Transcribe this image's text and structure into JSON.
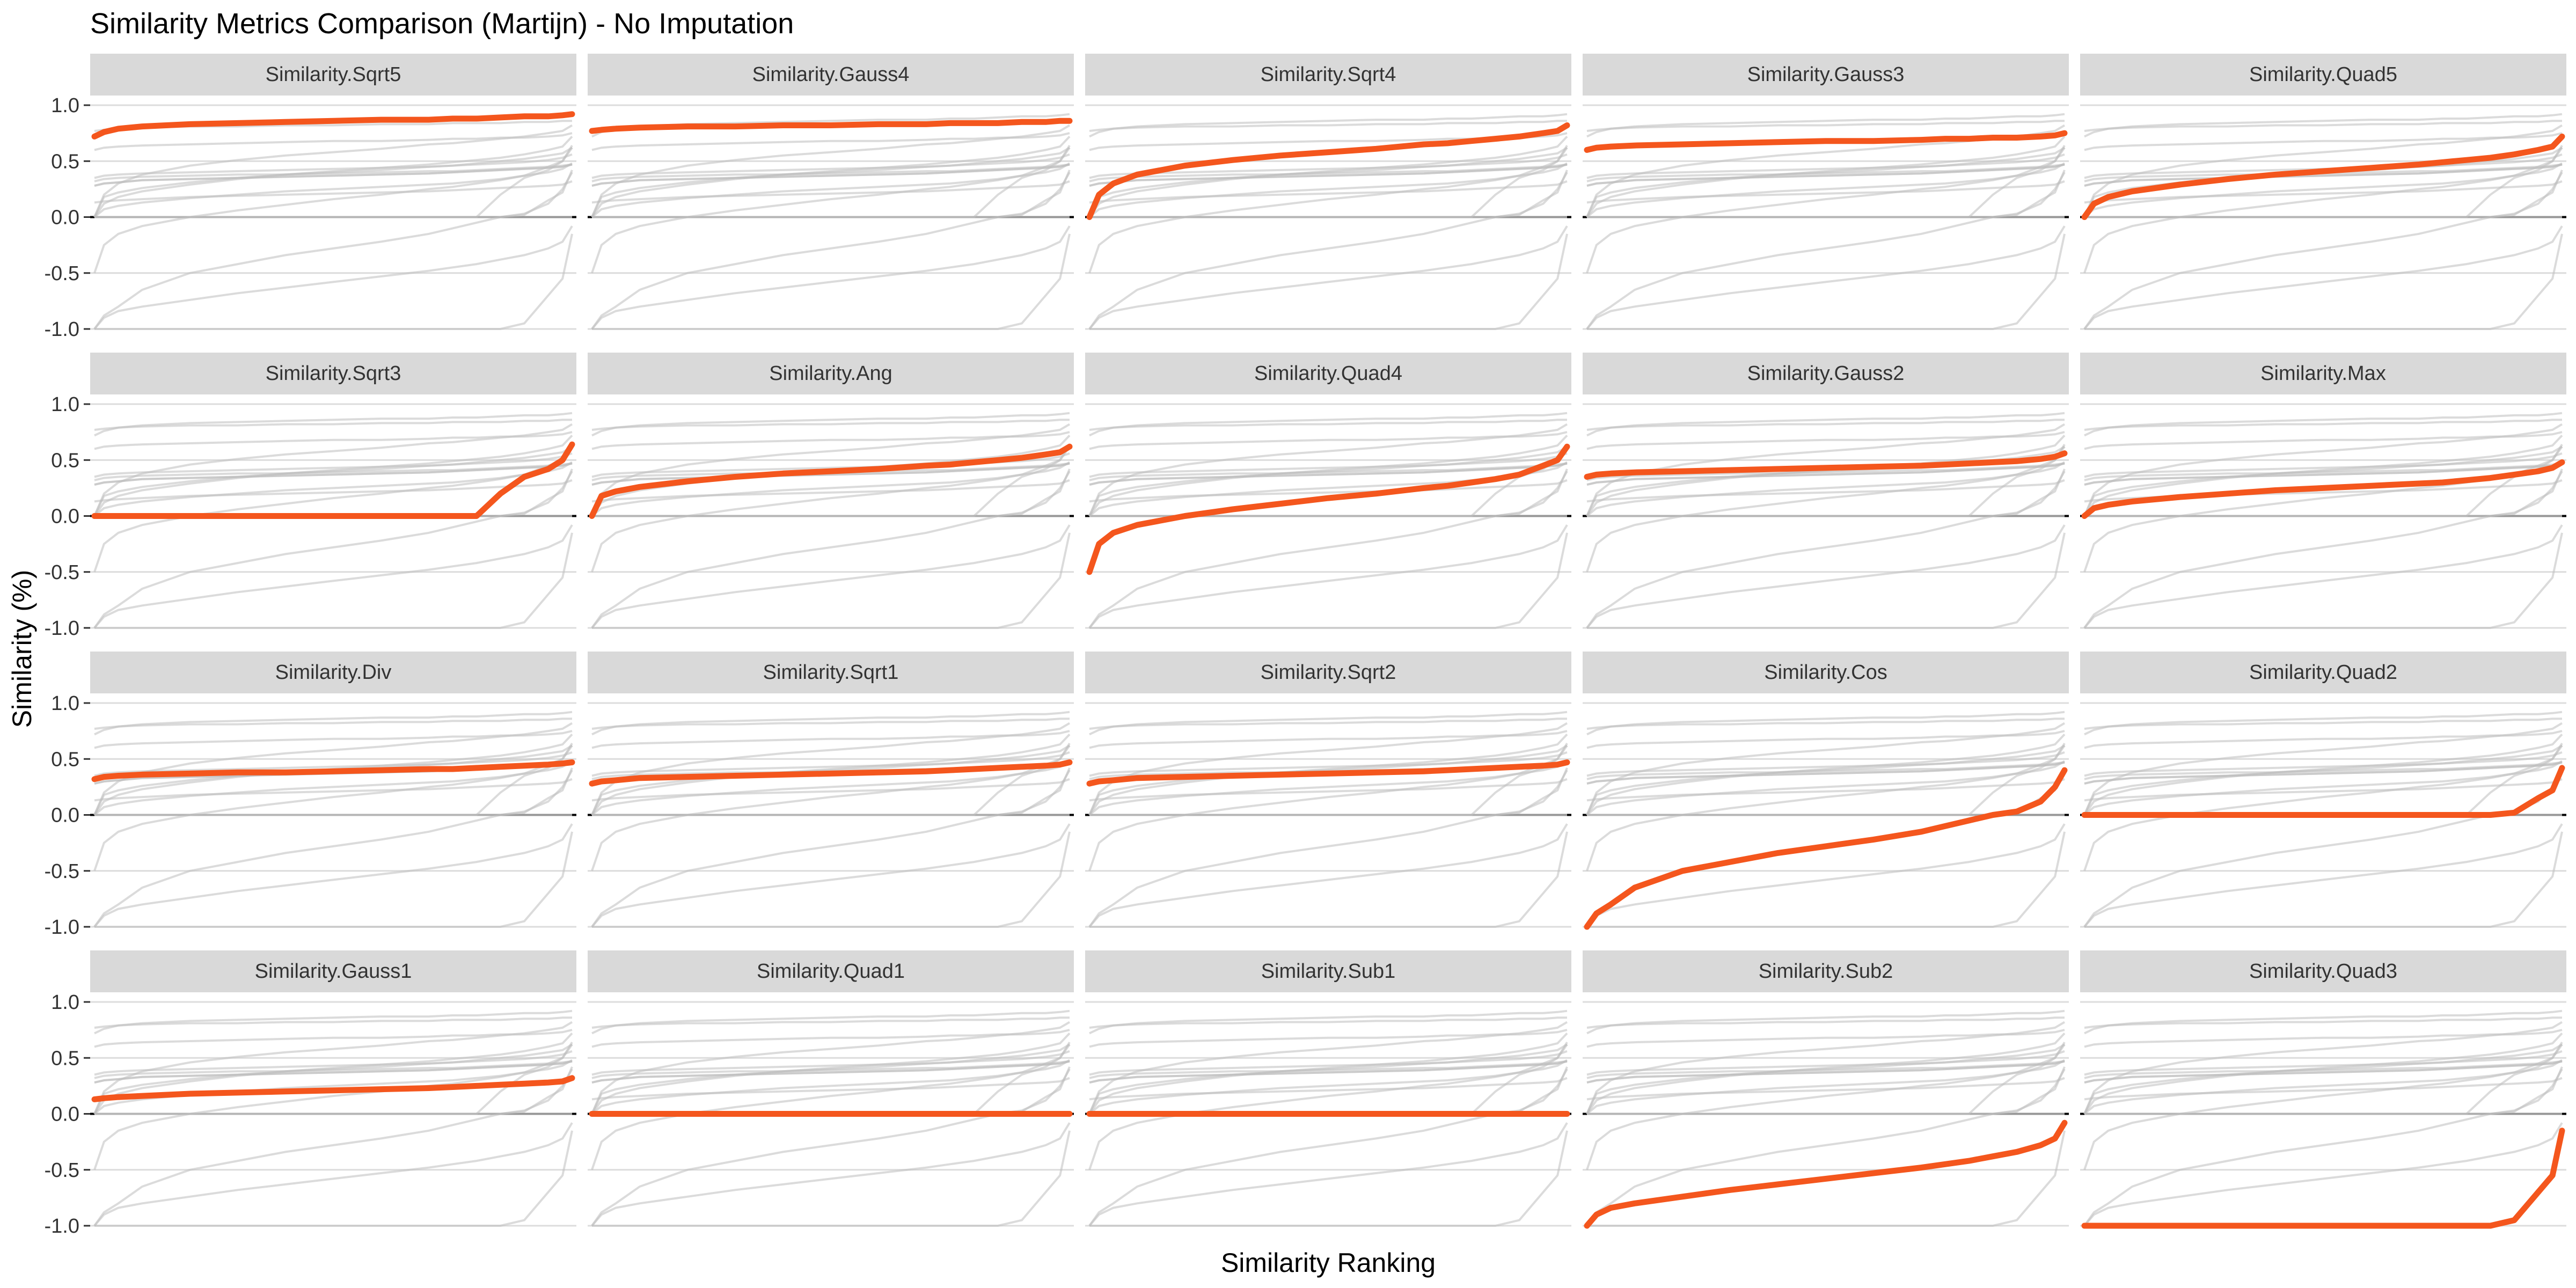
{
  "chart_data": {
    "type": "line",
    "title": "Similarity Metrics Comparison (Martijn) - No Imputation",
    "xlabel": "Similarity Ranking",
    "ylabel": "Similarity (%)",
    "ylim": [
      -1.0,
      1.0
    ],
    "yticks": [
      {
        "value": 1.0,
        "label": "1.0"
      },
      {
        "value": 0.5,
        "label": "0.5"
      },
      {
        "value": 0.0,
        "label": "0.0"
      },
      {
        "value": -0.5,
        "label": "-0.5"
      },
      {
        "value": -1.0,
        "label": "-1.0"
      }
    ],
    "x": [
      0,
      0.02,
      0.05,
      0.1,
      0.2,
      0.3,
      0.4,
      0.5,
      0.6,
      0.7,
      0.75,
      0.8,
      0.85,
      0.9,
      0.95,
      0.98,
      1.0
    ],
    "highlight_color": "#f4561d",
    "background_color": "#bdbdbd",
    "grid": true,
    "layout": {
      "rows": 4,
      "cols": 5
    },
    "panels": [
      {
        "name": "Similarity.Sqrt5",
        "values": [
          0.72,
          0.76,
          0.79,
          0.81,
          0.83,
          0.84,
          0.85,
          0.86,
          0.87,
          0.87,
          0.88,
          0.88,
          0.89,
          0.9,
          0.9,
          0.91,
          0.92
        ]
      },
      {
        "name": "Similarity.Gauss4",
        "values": [
          0.77,
          0.78,
          0.79,
          0.8,
          0.81,
          0.81,
          0.82,
          0.82,
          0.83,
          0.83,
          0.84,
          0.84,
          0.84,
          0.85,
          0.85,
          0.86,
          0.86
        ]
      },
      {
        "name": "Similarity.Sqrt4",
        "values": [
          0.0,
          0.2,
          0.3,
          0.38,
          0.46,
          0.51,
          0.55,
          0.58,
          0.61,
          0.65,
          0.66,
          0.68,
          0.7,
          0.72,
          0.75,
          0.77,
          0.82
        ]
      },
      {
        "name": "Similarity.Gauss3",
        "values": [
          0.6,
          0.62,
          0.63,
          0.64,
          0.65,
          0.66,
          0.67,
          0.68,
          0.68,
          0.69,
          0.7,
          0.7,
          0.71,
          0.71,
          0.72,
          0.73,
          0.75
        ]
      },
      {
        "name": "Similarity.Quad5",
        "values": [
          0.0,
          0.12,
          0.18,
          0.23,
          0.29,
          0.34,
          0.38,
          0.41,
          0.44,
          0.47,
          0.49,
          0.51,
          0.53,
          0.56,
          0.6,
          0.63,
          0.72
        ]
      },
      {
        "name": "Similarity.Sqrt3",
        "values": [
          0.0,
          0.0,
          0.0,
          0.0,
          0.0,
          0.0,
          0.0,
          0.0,
          0.0,
          0.0,
          0.0,
          0.0,
          0.2,
          0.35,
          0.42,
          0.5,
          0.64
        ]
      },
      {
        "name": "Similarity.Ang",
        "values": [
          0.0,
          0.18,
          0.22,
          0.26,
          0.31,
          0.35,
          0.38,
          0.4,
          0.42,
          0.45,
          0.46,
          0.48,
          0.5,
          0.52,
          0.55,
          0.57,
          0.62
        ]
      },
      {
        "name": "Similarity.Quad4",
        "values": [
          -0.5,
          -0.25,
          -0.15,
          -0.08,
          0.0,
          0.06,
          0.11,
          0.16,
          0.2,
          0.25,
          0.27,
          0.3,
          0.33,
          0.37,
          0.45,
          0.5,
          0.62
        ]
      },
      {
        "name": "Similarity.Gauss2",
        "values": [
          0.35,
          0.37,
          0.38,
          0.39,
          0.4,
          0.41,
          0.42,
          0.43,
          0.44,
          0.45,
          0.46,
          0.47,
          0.48,
          0.49,
          0.51,
          0.53,
          0.56
        ]
      },
      {
        "name": "Similarity.Max",
        "values": [
          0.0,
          0.07,
          0.1,
          0.13,
          0.17,
          0.2,
          0.23,
          0.25,
          0.27,
          0.29,
          0.3,
          0.32,
          0.34,
          0.37,
          0.4,
          0.43,
          0.48
        ]
      },
      {
        "name": "Similarity.Div",
        "values": [
          0.32,
          0.34,
          0.35,
          0.36,
          0.37,
          0.38,
          0.38,
          0.39,
          0.4,
          0.41,
          0.41,
          0.42,
          0.43,
          0.44,
          0.45,
          0.46,
          0.47
        ]
      },
      {
        "name": "Similarity.Sqrt1",
        "values": [
          0.28,
          0.3,
          0.31,
          0.33,
          0.34,
          0.35,
          0.36,
          0.37,
          0.38,
          0.39,
          0.4,
          0.41,
          0.42,
          0.43,
          0.44,
          0.45,
          0.47
        ]
      },
      {
        "name": "Similarity.Sqrt2",
        "values": [
          0.28,
          0.3,
          0.31,
          0.33,
          0.34,
          0.35,
          0.36,
          0.37,
          0.38,
          0.39,
          0.4,
          0.41,
          0.42,
          0.43,
          0.44,
          0.45,
          0.47
        ]
      },
      {
        "name": "Similarity.Cos",
        "values": [
          -1.0,
          -0.88,
          -0.8,
          -0.65,
          -0.5,
          -0.42,
          -0.34,
          -0.28,
          -0.22,
          -0.15,
          -0.1,
          -0.05,
          0.0,
          0.03,
          0.12,
          0.25,
          0.4
        ]
      },
      {
        "name": "Similarity.Quad2",
        "values": [
          0.0,
          0.0,
          0.0,
          0.0,
          0.0,
          0.0,
          0.0,
          0.0,
          0.0,
          0.0,
          0.0,
          0.0,
          0.0,
          0.02,
          0.15,
          0.22,
          0.42
        ]
      },
      {
        "name": "Similarity.Gauss1",
        "values": [
          0.13,
          0.14,
          0.15,
          0.16,
          0.18,
          0.19,
          0.2,
          0.21,
          0.22,
          0.23,
          0.24,
          0.25,
          0.26,
          0.27,
          0.28,
          0.29,
          0.32
        ]
      },
      {
        "name": "Similarity.Quad1",
        "values": [
          0,
          0,
          0,
          0,
          0,
          0,
          0,
          0,
          0,
          0,
          0,
          0,
          0,
          0,
          0,
          0,
          0
        ]
      },
      {
        "name": "Similarity.Sub1",
        "values": [
          0,
          0,
          0,
          0,
          0,
          0,
          0,
          0,
          0,
          0,
          0,
          0,
          0,
          0,
          0,
          0,
          0
        ]
      },
      {
        "name": "Similarity.Sub2",
        "values": [
          -1.0,
          -0.9,
          -0.84,
          -0.8,
          -0.74,
          -0.68,
          -0.63,
          -0.58,
          -0.53,
          -0.48,
          -0.45,
          -0.42,
          -0.38,
          -0.34,
          -0.28,
          -0.22,
          -0.08
        ]
      },
      {
        "name": "Similarity.Quad3",
        "values": [
          -1.0,
          -1.0,
          -1.0,
          -1.0,
          -1.0,
          -1.0,
          -1.0,
          -1.0,
          -1.0,
          -1.0,
          -1.0,
          -1.0,
          -1.0,
          -0.95,
          -0.7,
          -0.55,
          -0.15
        ]
      }
    ]
  }
}
